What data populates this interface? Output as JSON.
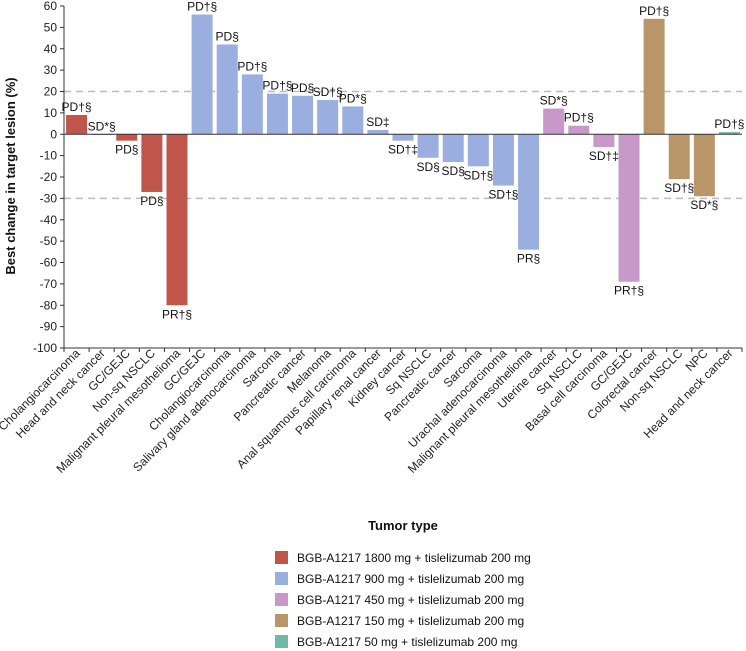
{
  "chart_data": {
    "type": "bar",
    "title": "",
    "xlabel": "Tumor type",
    "ylabel": "Best change in target lesion (%)",
    "ylim": [
      -100,
      60
    ],
    "yticks": [
      60,
      50,
      40,
      30,
      20,
      10,
      0,
      -10,
      -20,
      -30,
      -40,
      -50,
      -60,
      -70,
      -80,
      -90,
      -100
    ],
    "reference_lines": [
      20,
      -30
    ],
    "colors": {
      "1800": "#c0554b",
      "900": "#9baee0",
      "450": "#c898c8",
      "150": "#b9956a",
      "50": "#6fb8a5"
    },
    "bars": [
      {
        "category": "Cholangiocarcinoma",
        "value": 9,
        "label": "PD†§",
        "group": "1800"
      },
      {
        "category": "Head and neck cancer",
        "value": 0,
        "label": "SD*§",
        "group": "1800"
      },
      {
        "category": "GC/GEJC",
        "value": -3,
        "label": "PD§",
        "group": "1800"
      },
      {
        "category": "Non-sq NSCLC",
        "value": -27,
        "label": "PD§",
        "group": "1800"
      },
      {
        "category": "Malignant pleural mesothelioma",
        "value": -80,
        "label": "PR†§",
        "group": "1800"
      },
      {
        "category": "GC/GEJC",
        "value": 56,
        "label": "PD†§",
        "group": "900"
      },
      {
        "category": "Cholangiocarcinoma",
        "value": 42,
        "label": "PD§",
        "group": "900"
      },
      {
        "category": "Salivary gland adenocarcinoma",
        "value": 28,
        "label": "PD†§",
        "group": "900"
      },
      {
        "category": "Sarcoma",
        "value": 19,
        "label": "PD†§",
        "group": "900"
      },
      {
        "category": "Pancreatic cancer",
        "value": 18,
        "label": "PD§",
        "group": "900"
      },
      {
        "category": "Melanoma",
        "value": 16,
        "label": "SD†§",
        "group": "900"
      },
      {
        "category": "Anal squamous cell carcinoma",
        "value": 13,
        "label": "PD*§",
        "group": "900"
      },
      {
        "category": "Papillary renal cancer",
        "value": 2,
        "label": "SD‡",
        "group": "900"
      },
      {
        "category": "Kidney cancer",
        "value": -3,
        "label": "SD†‡",
        "group": "900"
      },
      {
        "category": "Sq NSCLC",
        "value": -11,
        "label": "SD§",
        "group": "900"
      },
      {
        "category": "Pancreatic cancer",
        "value": -13,
        "label": "SD§",
        "group": "900"
      },
      {
        "category": "Sarcoma",
        "value": -15,
        "label": "SD†§",
        "group": "900"
      },
      {
        "category": "Urachal adenocarcinoma",
        "value": -24,
        "label": "SD†§",
        "group": "900"
      },
      {
        "category": "Malignant pleural mesothelioma",
        "value": -54,
        "label": "PR§",
        "group": "900"
      },
      {
        "category": "Uterine cancer",
        "value": 12,
        "label": "SD*§",
        "group": "450"
      },
      {
        "category": "Sq NSCLC",
        "value": 4,
        "label": "PD†§",
        "group": "450"
      },
      {
        "category": "Basal cell carcinoma",
        "value": -6,
        "label": "SD†‡",
        "group": "450"
      },
      {
        "category": "GC/GEJC",
        "value": -69,
        "label": "PR†§",
        "group": "450"
      },
      {
        "category": "Colorectal cancer",
        "value": 54,
        "label": "PD†§",
        "group": "150"
      },
      {
        "category": "Non-sq NSCLC",
        "value": -21,
        "label": "SD†§",
        "group": "150"
      },
      {
        "category": "NPC",
        "value": -29,
        "label": "SD*§",
        "group": "150"
      },
      {
        "category": "Head and neck cancer",
        "value": 1,
        "label": "PD†§",
        "group": "50"
      }
    ],
    "legend": [
      {
        "group": "1800",
        "label": "BGB-A1217 1800 mg + tislelizumab 200 mg"
      },
      {
        "group": "900",
        "label": "BGB-A1217 900 mg + tislelizumab 200 mg"
      },
      {
        "group": "450",
        "label": "BGB-A1217 450 mg + tislelizumab 200 mg"
      },
      {
        "group": "150",
        "label": "BGB-A1217 150 mg + tislelizumab 200 mg"
      },
      {
        "group": "50",
        "label": "BGB-A1217 50 mg + tislelizumab 200 mg"
      }
    ],
    "legend_position": "bottom"
  }
}
